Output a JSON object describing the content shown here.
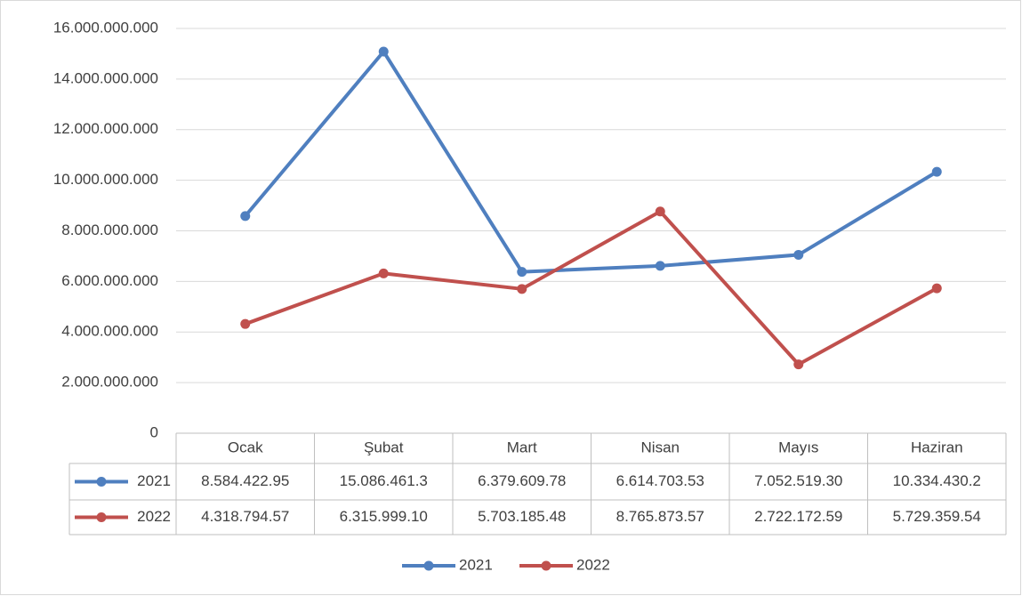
{
  "chart_data": {
    "type": "line",
    "categories": [
      "Ocak",
      "Şubat",
      "Mart",
      "Nisan",
      "Mayıs",
      "Haziran"
    ],
    "series": [
      {
        "name": "2021",
        "color": "#4F7FBF",
        "values": [
          8584422950,
          15086461300,
          6379609780,
          6614703530,
          7052519300,
          10334430200
        ],
        "value_labels": [
          "8.584.422.95",
          "15.086.461.3",
          "6.379.609.78",
          "6.614.703.53",
          "7.052.519.30",
          "10.334.430.2"
        ]
      },
      {
        "name": "2022",
        "color": "#C0504D",
        "values": [
          4318794570,
          6315999100,
          5703185480,
          8765873570,
          2722172590,
          5729359540
        ],
        "value_labels": [
          "4.318.794.57",
          "6.315.999.10",
          "5.703.185.48",
          "8.765.873.57",
          "2.722.172.59",
          "5.729.359.54"
        ]
      }
    ],
    "ylim": [
      0,
      16000000000
    ],
    "yticks": [
      0,
      {
        "value": 2000000000,
        "label": "2.000.000.000"
      },
      {
        "value": 4000000000,
        "label": "4.000.000.000"
      },
      {
        "value": 6000000000,
        "label": "6.000.000.000"
      },
      {
        "value": 8000000000,
        "label": "8.000.000.000"
      },
      {
        "value": 10000000000,
        "label": "10.000.000.000"
      },
      {
        "value": 12000000000,
        "label": "12.000.000.000"
      },
      {
        "value": 14000000000,
        "label": "14.000.000.000"
      },
      {
        "value": 16000000000,
        "label": "16.000.000.000"
      }
    ],
    "grid": true,
    "legend": "bottom"
  }
}
